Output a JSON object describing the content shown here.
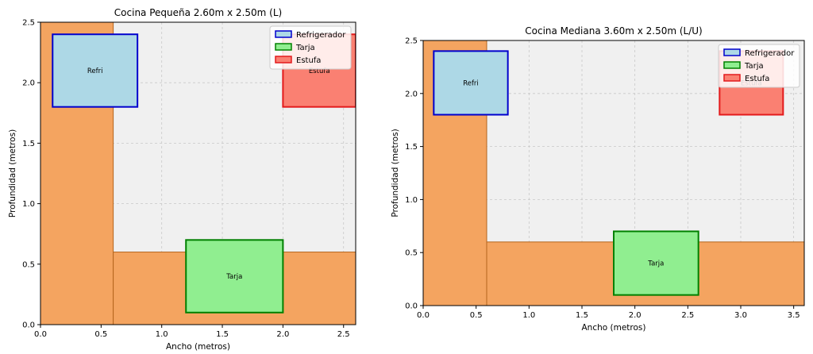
{
  "chart_data": [
    {
      "type": "floor-plan",
      "title": "Cocina Pequeña 2.60m x 2.50m (L)",
      "xlabel": "Ancho (metros)",
      "ylabel": "Profundidad (metros)",
      "xlim": [
        0,
        2.6
      ],
      "ylim": [
        0,
        2.5
      ],
      "xticks": [
        "0.0",
        "0.5",
        "1.0",
        "1.5",
        "2.0",
        "2.5"
      ],
      "yticks": [
        "0.0",
        "0.5",
        "1.0",
        "1.5",
        "2.0",
        "2.5"
      ],
      "grid": true,
      "legend_position": "top-right",
      "counters": [
        {
          "x": 0,
          "y": 0,
          "width": 0.6,
          "height": 2.5,
          "color": "#f4a460"
        },
        {
          "x": 0.6,
          "y": 0,
          "width": 2.0,
          "height": 0.6,
          "color": "#f4a460"
        }
      ],
      "appliances": [
        {
          "name": "Refrigerador",
          "label": "Refri",
          "x": 0.1,
          "y": 1.8,
          "width": 0.7,
          "height": 0.6,
          "fill": "#add8e6",
          "edge": "#0000cd"
        },
        {
          "name": "Tarja",
          "label": "Tarja",
          "x": 1.2,
          "y": 0.1,
          "width": 0.8,
          "height": 0.6,
          "fill": "#90ee90",
          "edge": "#008000"
        },
        {
          "name": "Estufa",
          "label": "Estufa",
          "x": 2.0,
          "y": 1.8,
          "width": 0.6,
          "height": 0.6,
          "fill": "#fa8072",
          "edge": "#e31a1c"
        }
      ],
      "legend": [
        "Refrigerador",
        "Tarja",
        "Estufa"
      ]
    },
    {
      "type": "floor-plan",
      "title": "Cocina Mediana 3.60m x 2.50m (L/U)",
      "xlabel": "Ancho (metros)",
      "ylabel": "Profundidad (metros)",
      "xlim": [
        0,
        3.6
      ],
      "ylim": [
        0,
        2.5
      ],
      "xticks": [
        "0.0",
        "0.5",
        "1.0",
        "1.5",
        "2.0",
        "2.5",
        "3.0",
        "3.5"
      ],
      "yticks": [
        "0.0",
        "0.5",
        "1.0",
        "1.5",
        "2.0",
        "2.5"
      ],
      "grid": true,
      "legend_position": "top-right",
      "counters": [
        {
          "x": 0,
          "y": 0,
          "width": 0.6,
          "height": 2.5,
          "color": "#f4a460"
        },
        {
          "x": 0.6,
          "y": 0,
          "width": 3.0,
          "height": 0.6,
          "color": "#f4a460"
        }
      ],
      "appliances": [
        {
          "name": "Refrigerador",
          "label": "Refri",
          "x": 0.1,
          "y": 1.8,
          "width": 0.7,
          "height": 0.6,
          "fill": "#add8e6",
          "edge": "#0000cd"
        },
        {
          "name": "Tarja",
          "label": "Tarja",
          "x": 1.8,
          "y": 0.1,
          "width": 0.8,
          "height": 0.6,
          "fill": "#90ee90",
          "edge": "#008000"
        },
        {
          "name": "Estufa",
          "label": "Estufa",
          "x": 2.8,
          "y": 1.8,
          "width": 0.6,
          "height": 0.6,
          "fill": "#fa8072",
          "edge": "#e31a1c"
        }
      ],
      "legend": [
        "Refrigerador",
        "Tarja",
        "Estufa"
      ]
    }
  ]
}
